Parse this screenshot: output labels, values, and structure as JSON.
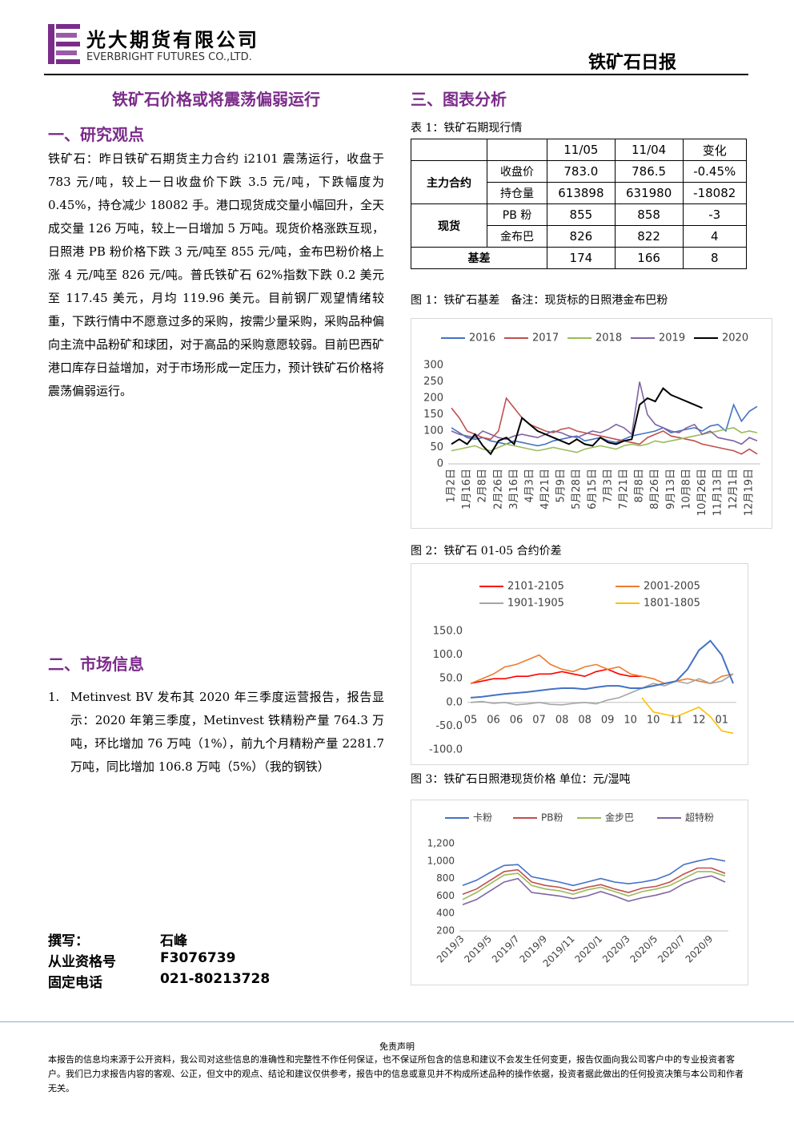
{
  "header": {
    "company": "光大期货有限公司",
    "company_en": "EVERBRIGHT FUTURES CO.,LTD.",
    "report": "铁矿石日报"
  },
  "headline": "铁矿石价格或将震荡偏弱运行",
  "section1": {
    "title": "一、研究观点",
    "body": "铁矿石：昨日铁矿石期货主力合约 i2101 震荡运行，收盘于 783 元/吨，较上一日收盘价下跌 3.5 元/吨，下跌幅度为 0.45%，持仓减少 18082 手。港口现货成交量小幅回升，全天成交量 126 万吨，较上一日增加 5 万吨。现货价格涨跌互现，日照港 PB 粉价格下跌 3 元/吨至 855 元/吨，金布巴粉价格上涨 4 元/吨至 826 元/吨。普氏铁矿石 62%指数下跌 0.2 美元至 117.45 美元，月均 119.96 美元。目前钢厂观望情绪较重，下跌行情中不愿意过多的采购，按需少量采购，采购品种偏向主流中品粉矿和球团，对于高品的采购意愿较弱。目前巴西矿港口库存日益增加，对于市场形成一定压力，预计铁矿石价格将震荡偏弱运行。"
  },
  "section2": {
    "title": "二、市场信息",
    "items": [
      {
        "number": "1.",
        "text": "Metinvest BV 发布其 2020 年三季度运营报告，报告显示：2020 年第三季度，Metinvest 铁精粉产量 764.3 万吨，环比增加 76 万吨（1%），前九个月精粉产量 2281.7 万吨，同比增加 106.8 万吨（5%）（我的钢铁）"
      }
    ]
  },
  "section3": {
    "title": "三、图表分析"
  },
  "table": {
    "title": "表 1：铁矿石期现行情",
    "header": [
      "11/05",
      "11/04",
      "变化"
    ],
    "groups": [
      {
        "name": "主力合约",
        "rows": [
          {
            "label": "收盘价",
            "cells": [
              "783.0",
              "786.5",
              "-0.45%"
            ]
          },
          {
            "label": "持仓量",
            "cells": [
              "613898",
              "631980",
              "-18082"
            ]
          }
        ]
      },
      {
        "name": "现货",
        "rows": [
          {
            "label": "PB 粉",
            "cells": [
              "855",
              "858",
              "-3"
            ]
          },
          {
            "label": "金布巴",
            "cells": [
              "826",
              "822",
              "4"
            ]
          }
        ]
      }
    ],
    "basis": {
      "label": "基差",
      "cells": [
        "174",
        "166",
        "8"
      ]
    }
  },
  "author": [
    {
      "label": "撰写：",
      "value": "石峰"
    },
    {
      "label": "从业资格号",
      "value": "F3076739"
    },
    {
      "label": "固定电话",
      "value": "021-80213728"
    }
  ],
  "footer": {
    "title": "免责声明",
    "text": "本报告的信息均来源于公开资料，我公司对这些信息的准确性和完整性不作任何保证，也不保证所包含的信息和建议不会发生任何变更，报告仅面向我公司客户中的专业投资者客户。我们已力求报告内容的客观、公正，但文中的观点、结论和建议仅供参考，报告中的信息或意见并不构成所述品种的操作依据，投资者据此做出的任何投资决策与本公司和作者无关。"
  },
  "chart_data": [
    {
      "type": "line",
      "title": "图 1：铁矿石基差　备注：现货标的日照港金布巴粉",
      "categories": [
        "1月2日",
        null,
        "1月16日",
        null,
        "2月8日",
        null,
        "2月26日",
        null,
        "3月16日",
        null,
        "4月3日",
        null,
        "4月21日",
        null,
        "5月9日",
        null,
        "5月28日",
        null,
        "6月15日",
        null,
        "7月3日",
        null,
        "7月21日",
        null,
        "8月8日",
        null,
        "8月26日",
        null,
        "9月13日",
        null,
        "10月8日",
        null,
        "10月26日",
        null,
        "11月13日",
        null,
        "12月1日",
        null,
        "12月19日",
        null
      ],
      "ylim": [
        0,
        300
      ],
      "yticks": [
        0,
        50,
        100,
        150,
        200,
        250,
        300
      ],
      "grid": false,
      "series": [
        {
          "name": "2016",
          "color": "#4472c4",
          "values": [
            110,
            95,
            80,
            75,
            80,
            70,
            65,
            60,
            70,
            65,
            60,
            55,
            60,
            70,
            75,
            80,
            85,
            70,
            75,
            80,
            70,
            65,
            75,
            85,
            90,
            95,
            100,
            110,
            95,
            100,
            105,
            110,
            100,
            115,
            120,
            100,
            180,
            130,
            160,
            175
          ]
        },
        {
          "name": "2017",
          "color": "#c0504d",
          "values": [
            170,
            140,
            100,
            90,
            80,
            75,
            100,
            200,
            170,
            140,
            120,
            110,
            100,
            95,
            105,
            110,
            100,
            95,
            90,
            85,
            80,
            75,
            70,
            65,
            60,
            80,
            90,
            100,
            85,
            80,
            75,
            70,
            60,
            55,
            50,
            45,
            40,
            30,
            45,
            30
          ]
        },
        {
          "name": "2018",
          "color": "#9bbb59",
          "values": [
            40,
            45,
            50,
            55,
            45,
            40,
            50,
            60,
            55,
            50,
            45,
            40,
            45,
            50,
            45,
            40,
            35,
            45,
            50,
            55,
            50,
            45,
            55,
            60,
            55,
            60,
            70,
            65,
            70,
            75,
            80,
            85,
            90,
            95,
            100,
            105,
            110,
            95,
            100,
            95
          ]
        },
        {
          "name": "2019",
          "color": "#8064a2",
          "values": [
            100,
            90,
            85,
            80,
            100,
            90,
            80,
            75,
            85,
            90,
            85,
            80,
            90,
            100,
            95,
            85,
            80,
            90,
            100,
            95,
            105,
            120,
            110,
            90,
            250,
            150,
            120,
            110,
            100,
            95,
            110,
            120,
            90,
            100,
            80,
            75,
            70,
            60,
            80,
            70
          ]
        },
        {
          "name": "2020",
          "color": "#000000",
          "values": [
            60,
            75,
            60,
            90,
            55,
            30,
            70,
            80,
            60,
            140,
            120,
            100,
            90,
            80,
            70,
            60,
            75,
            60,
            55,
            80,
            65,
            60,
            70,
            75,
            180,
            200,
            190,
            230,
            210,
            200,
            190,
            180,
            170,
            null,
            null,
            null,
            null,
            null,
            null,
            null
          ]
        }
      ]
    },
    {
      "type": "line",
      "title": "图 2：铁矿石 01-05 合约价差",
      "categories": [
        "05",
        null,
        "06",
        null,
        "06",
        null,
        "07",
        null,
        "08",
        null,
        "08",
        null,
        "09",
        null,
        "10",
        null,
        "10",
        null,
        "11",
        null,
        "12",
        null,
        "01",
        null
      ],
      "ylim": [
        -100,
        150
      ],
      "yticks": [
        {
          "value": -100,
          "label": "-100.0"
        },
        {
          "value": -50,
          "label": "-50.0"
        },
        {
          "value": 0,
          "label": "0.0"
        },
        {
          "value": 50,
          "label": "50.0"
        },
        {
          "value": 100,
          "label": "100.0"
        },
        {
          "value": 150,
          "label": "150.0"
        }
      ],
      "grid": false,
      "series": [
        {
          "name": "2101-2105",
          "color": "#ff0000",
          "values": [
            40,
            45,
            50,
            50,
            55,
            55,
            60,
            60,
            65,
            60,
            55,
            65,
            70,
            60,
            55,
            55,
            null,
            null,
            null,
            null,
            null,
            null,
            null,
            null
          ]
        },
        {
          "name": "2001-2005",
          "color": "#ed7d31",
          "values": [
            40,
            50,
            60,
            75,
            80,
            90,
            100,
            80,
            70,
            65,
            75,
            80,
            70,
            75,
            60,
            55,
            50,
            40,
            45,
            50,
            45,
            40,
            55,
            60
          ]
        },
        {
          "name": "1901-1905",
          "color": "#a5a5a5",
          "values": [
            0,
            2,
            -2,
            0,
            -5,
            -3,
            0,
            -4,
            -5,
            -2,
            0,
            -3,
            5,
            10,
            20,
            30,
            40,
            35,
            45,
            40,
            50,
            40,
            45,
            60
          ]
        },
        {
          "name": "1801-1805",
          "color": "#ffc000",
          "values": [
            null,
            null,
            null,
            null,
            null,
            null,
            null,
            null,
            null,
            null,
            null,
            null,
            null,
            null,
            null,
            10,
            -20,
            -25,
            -30,
            -20,
            -10,
            -30,
            -60,
            -65
          ]
        },
        {
          "color": "#4472c4",
          "values": [
            10,
            12,
            15,
            18,
            20,
            22,
            25,
            28,
            30,
            30,
            28,
            32,
            35,
            35,
            30,
            30,
            35,
            40,
            45,
            70,
            110,
            130,
            100,
            40
          ]
        }
      ]
    },
    {
      "type": "line",
      "title": "图 3：铁矿石日照港现货价格 单位：元/湿吨",
      "categories": [
        "2019/3",
        null,
        "2019/5",
        null,
        "2019/7",
        null,
        "2019/9",
        null,
        "2019/11",
        null,
        "2020/1",
        null,
        "2020/3",
        null,
        "2020/5",
        null,
        "2020/7",
        null,
        "2020/9",
        null
      ],
      "ylim": [
        200,
        1200
      ],
      "yticks": [
        200,
        400,
        600,
        800,
        {
          "value": 1000,
          "label": "1,000"
        },
        {
          "value": 1200,
          "label": "1,200"
        }
      ],
      "grid": false,
      "series": [
        {
          "name": "卡粉",
          "color": "#4472c4",
          "values": [
            720,
            780,
            870,
            950,
            960,
            820,
            790,
            760,
            720,
            760,
            800,
            760,
            740,
            760,
            790,
            850,
            960,
            1000,
            1030,
            1000
          ]
        },
        {
          "name": "PB粉",
          "color": "#c0504d",
          "values": [
            620,
            680,
            780,
            880,
            900,
            760,
            720,
            700,
            660,
            700,
            730,
            680,
            640,
            690,
            710,
            760,
            850,
            920,
            920,
            860
          ]
        },
        {
          "name": "金步巴",
          "color": "#9bbb59",
          "values": [
            560,
            640,
            740,
            840,
            860,
            720,
            680,
            660,
            620,
            670,
            700,
            650,
            600,
            650,
            680,
            720,
            800,
            880,
            880,
            830
          ]
        },
        {
          "name": "超特粉",
          "color": "#8064a2",
          "values": [
            500,
            560,
            660,
            760,
            800,
            640,
            620,
            600,
            570,
            600,
            650,
            600,
            540,
            580,
            610,
            650,
            740,
            800,
            830,
            760
          ]
        }
      ]
    }
  ]
}
